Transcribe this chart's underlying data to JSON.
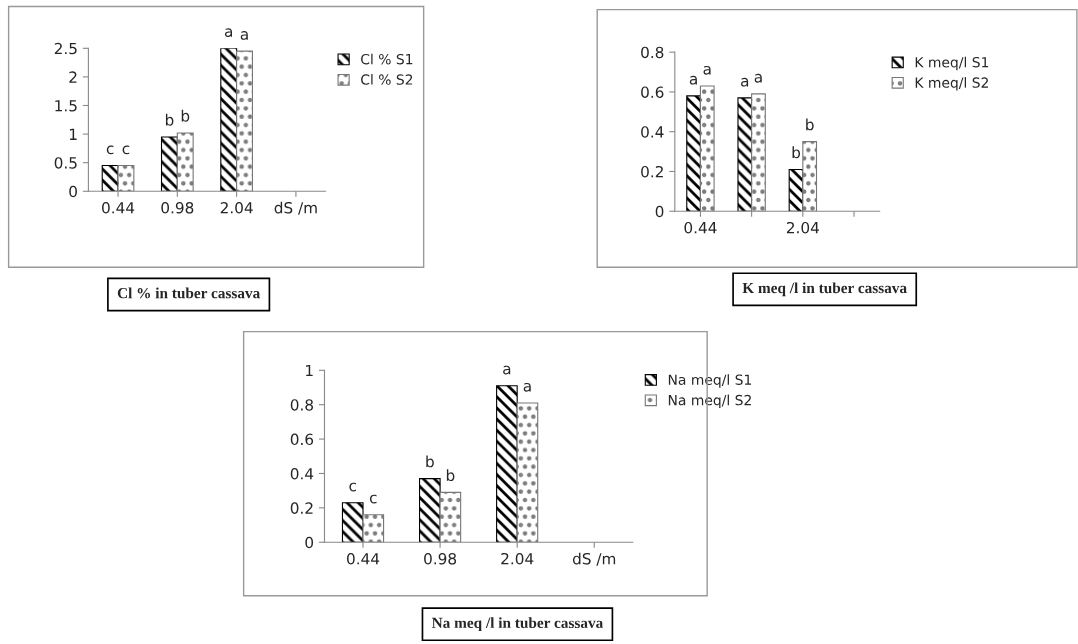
{
  "chart_data": [
    {
      "type": "bar",
      "title": "Cl % in tuber cassava",
      "categories": [
        "0.44",
        "0.98",
        "2.04",
        "dS /m"
      ],
      "ylim": [
        0,
        2.5
      ],
      "yticks": [
        0,
        0.5,
        1,
        1.5,
        2,
        2.5
      ],
      "grid": false,
      "legend": "top right",
      "series": [
        {
          "name": "Cl % S1",
          "color": "#000000",
          "values": [
            0.45,
            0.95,
            2.5,
            null
          ],
          "value_labels": [
            "c",
            "b",
            "a",
            null
          ]
        },
        {
          "name": "Cl % S2",
          "color": "#777777",
          "values": [
            0.45,
            1.02,
            2.45,
            null
          ],
          "value_labels": [
            "c",
            "b",
            "a",
            null
          ]
        }
      ]
    },
    {
      "type": "bar",
      "title": "K meq /l in tuber cassava",
      "categories": [
        "0.44",
        null,
        "2.04",
        null
      ],
      "ylim": [
        0,
        0.8
      ],
      "yticks": [
        0,
        0.2,
        0.4,
        0.6,
        0.8
      ],
      "grid": false,
      "legend": "top right",
      "series": [
        {
          "name": "K meq/l S1",
          "color": "#000000",
          "values": [
            0.58,
            0.57,
            0.21,
            null
          ],
          "value_labels": [
            "a",
            "a",
            "b",
            null
          ]
        },
        {
          "name": "K meq/l S2",
          "color": "#777777",
          "values": [
            0.63,
            0.59,
            0.35,
            null
          ],
          "value_labels": [
            "a",
            "a",
            "b",
            null
          ]
        }
      ]
    },
    {
      "type": "bar",
      "title": "Na meq /l in tuber cassava",
      "categories": [
        "0.44",
        "0.98",
        "2.04",
        "dS /m"
      ],
      "ylim": [
        0,
        1
      ],
      "yticks": [
        0,
        0.2,
        0.4,
        0.6,
        0.8,
        1
      ],
      "grid": false,
      "legend": "top right",
      "series": [
        {
          "name": "Na meq/l S1",
          "color": "#000000",
          "values": [
            0.23,
            0.37,
            0.91,
            null
          ],
          "value_labels": [
            "c",
            "b",
            "a",
            null
          ]
        },
        {
          "name": "Na meq/l S2",
          "color": "#777777",
          "values": [
            0.16,
            0.29,
            0.81,
            null
          ],
          "value_labels": [
            "c",
            "b",
            "a",
            null
          ]
        }
      ]
    }
  ]
}
